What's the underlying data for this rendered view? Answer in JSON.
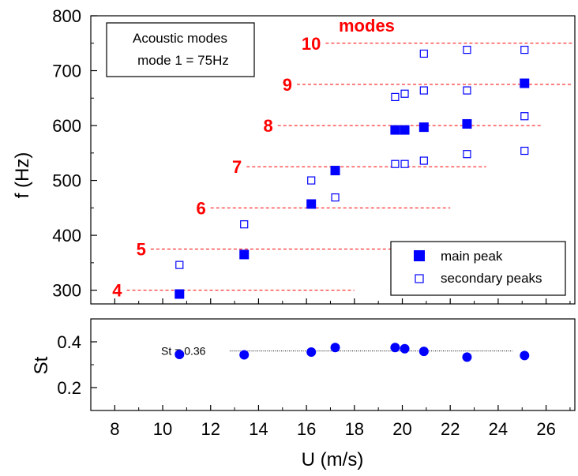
{
  "chart_data": [
    {
      "type": "scatter",
      "ylabel": "f (Hz)",
      "xlim": [
        7,
        27.2
      ],
      "ylim": [
        275,
        800
      ],
      "y_ticks": [
        300,
        400,
        500,
        600,
        700,
        800
      ],
      "annotation": {
        "line1": "Acoustic modes",
        "line2": "mode 1 = 75Hz"
      },
      "modes_title": "modes",
      "modes": [
        {
          "label": "4",
          "f": 300,
          "x_from": 8.5,
          "x_to": 18.0
        },
        {
          "label": "5",
          "f": 375,
          "x_from": 9.5,
          "x_to": 19.7
        },
        {
          "label": "6",
          "f": 450,
          "x_from": 12.0,
          "x_to": 22.0
        },
        {
          "label": "7",
          "f": 525,
          "x_from": 13.5,
          "x_to": 23.5
        },
        {
          "label": "8",
          "f": 600,
          "x_from": 14.8,
          "x_to": 25.8
        },
        {
          "label": "9",
          "f": 675,
          "x_from": 15.6,
          "x_to": 27.2
        },
        {
          "label": "10",
          "f": 750,
          "x_from": 16.8,
          "x_to": 27.2
        }
      ],
      "series": [
        {
          "name": "main peak",
          "marker": "filled-square",
          "color": "#0000ff",
          "x": [
            10.7,
            13.4,
            16.2,
            17.2,
            19.7,
            20.1,
            20.9,
            22.7,
            25.1
          ],
          "y": [
            293,
            365,
            457,
            518,
            592,
            592,
            597,
            603,
            677
          ]
        },
        {
          "name": "secondary peaks",
          "marker": "open-square",
          "color": "#0000ff",
          "x": [
            10.7,
            13.4,
            16.2,
            17.2,
            19.7,
            20.1,
            19.7,
            20.1,
            20.9,
            20.9,
            20.9,
            22.7,
            22.7,
            22.7,
            25.1,
            25.1,
            25.1
          ],
          "y": [
            346,
            420,
            500,
            469,
            530,
            530,
            652,
            658,
            536,
            664,
            731,
            548,
            664,
            738,
            554,
            617,
            738
          ]
        }
      ]
    },
    {
      "type": "scatter",
      "xlabel": "U (m/s)",
      "ylabel": "St",
      "xlim": [
        7,
        27.2
      ],
      "ylim": [
        0.1,
        0.5
      ],
      "x_ticks": [
        8,
        10,
        12,
        14,
        16,
        18,
        20,
        22,
        24,
        26
      ],
      "y_ticks": [
        0.2,
        0.4
      ],
      "reference_line": {
        "label": "St = 0.36",
        "value": 0.36,
        "x_from": 10.0,
        "x_to": 24.6
      },
      "series": [
        {
          "marker": "filled-circle",
          "color": "#0000ff",
          "x": [
            10.7,
            13.4,
            16.2,
            17.2,
            19.7,
            20.1,
            20.9,
            22.7,
            25.1
          ],
          "y": [
            0.345,
            0.343,
            0.355,
            0.375,
            0.375,
            0.37,
            0.358,
            0.333,
            0.34
          ]
        }
      ]
    }
  ]
}
